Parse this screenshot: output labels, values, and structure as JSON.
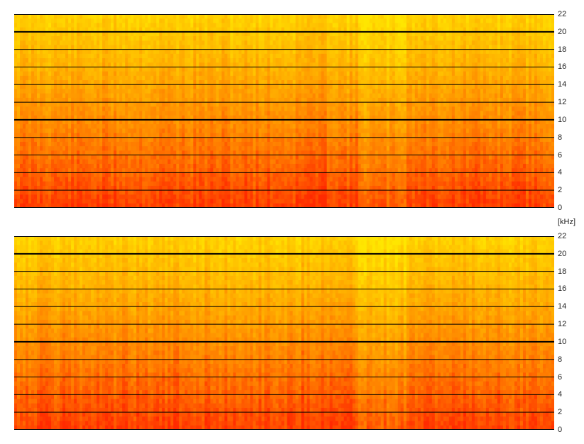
{
  "chart_data": [
    {
      "type": "heatmap",
      "title": "",
      "xlabel": "",
      "ylabel": "",
      "ylim": [
        0,
        22
      ],
      "yticks": [
        "0",
        "2",
        "4",
        "6",
        "8",
        "10",
        "12",
        "14",
        "16",
        "18",
        "20",
        "22"
      ],
      "bold_gridlines": [
        10,
        20
      ],
      "grid": true,
      "colormap": [
        "#ff2a00",
        "#ff7a00",
        "#ffb400",
        "#ffe600"
      ]
    },
    {
      "type": "heatmap",
      "title": "",
      "xlabel": "",
      "ylabel": "",
      "ylim": [
        0,
        22
      ],
      "yticks": [
        "0",
        "2",
        "4",
        "6",
        "8",
        "10",
        "12",
        "14",
        "16",
        "18",
        "20",
        "22"
      ],
      "bold_gridlines": [
        10,
        20
      ],
      "grid": true,
      "colormap": [
        "#ff2a00",
        "#ff7a00",
        "#ffb400",
        "#ffe600"
      ]
    }
  ],
  "unit_label": "[kHz]"
}
